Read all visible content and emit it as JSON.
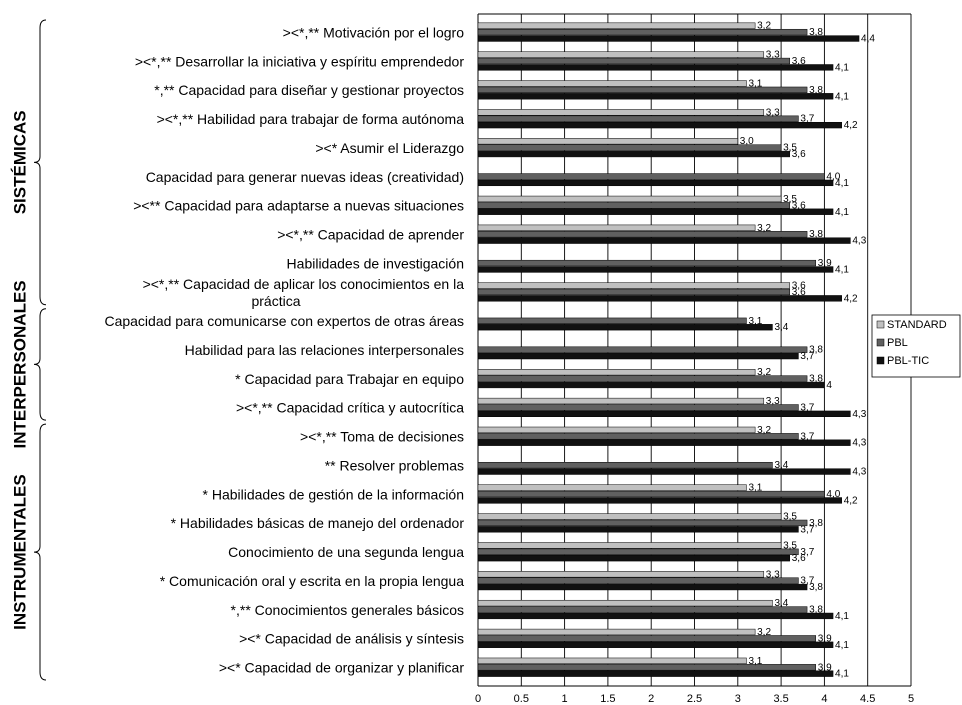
{
  "chart_data": {
    "type": "bar",
    "orientation": "horizontal",
    "xlim": [
      0,
      5
    ],
    "x_ticks": [
      "0",
      "0.5",
      "1",
      "1.5",
      "2",
      "2.5",
      "3",
      "3.5",
      "4",
      "4.5",
      "5"
    ],
    "grid": "vertical",
    "legend_position": "right",
    "groups": [
      {
        "name": "SISTÉMICAS",
        "first": 0,
        "last": 9
      },
      {
        "name": "INTERPERSONALES",
        "first": 10,
        "last": 13
      },
      {
        "name": "INSTRUMENTALES",
        "first": 14,
        "last": 22
      }
    ],
    "categories": [
      [
        "><*,** Motivación por el logro"
      ],
      [
        "><*,** Desarrollar la iniciativa y espíritu emprendedor"
      ],
      [
        "*,** Capacidad para diseñar y gestionar proyectos"
      ],
      [
        "><*,** Habilidad para trabajar de forma autónoma"
      ],
      [
        "><* Asumir el Liderazgo"
      ],
      [
        "Capacidad para generar nuevas ideas (creatividad)"
      ],
      [
        "><** Capacidad para adaptarse a nuevas situaciones"
      ],
      [
        "><*,** Capacidad de aprender"
      ],
      [
        "Habilidades de investigación"
      ],
      [
        "><*,** Capacidad de aplicar los conocimientos en la",
        "práctica"
      ],
      [
        "Capacidad para comunicarse con expertos de otras áreas"
      ],
      [
        "Habilidad para las relaciones interpersonales"
      ],
      [
        "* Capacidad para Trabajar en equipo"
      ],
      [
        "><*,** Capacidad crítica y autocrítica"
      ],
      [
        "><*,** Toma de decisiones"
      ],
      [
        "** Resolver problemas"
      ],
      [
        "* Habilidades de gestión de la información"
      ],
      [
        "* Habilidades básicas de manejo del ordenador"
      ],
      [
        "Conocimiento de una segunda lengua"
      ],
      [
        "* Comunicación oral y escrita en la propia lengua"
      ],
      [
        "*,** Conocimientos generales básicos"
      ],
      [
        "><* Capacidad de análisis y síntesis"
      ],
      [
        "><* Capacidad de organizar y planificar"
      ]
    ],
    "series": [
      {
        "name": "STANDARD",
        "color": "#c0c0c0",
        "values": [
          3.2,
          3.3,
          3.1,
          3.3,
          3.0,
          null,
          3.5,
          3.2,
          null,
          3.6,
          null,
          null,
          3.2,
          3.3,
          3.2,
          null,
          3.1,
          3.5,
          3.5,
          3.3,
          3.4,
          3.2,
          3.1
        ],
        "labels": [
          "3,2",
          "3,3",
          "3,1",
          "3,3",
          "3,0",
          "",
          "3,5",
          "3,2",
          "",
          "3,6",
          "",
          "",
          "3,2",
          "3,3",
          "3,2",
          "",
          "3,1",
          "3,5",
          "3,5",
          "3,3",
          "3,4",
          "3,2",
          "3,1"
        ]
      },
      {
        "name": "PBL",
        "color": "#606060",
        "values": [
          3.8,
          3.6,
          3.8,
          3.7,
          3.5,
          4.0,
          3.6,
          3.8,
          3.9,
          3.6,
          3.1,
          3.8,
          3.8,
          3.7,
          3.7,
          3.4,
          4.0,
          3.8,
          3.7,
          3.7,
          3.8,
          3.9,
          3.9
        ],
        "labels": [
          "3,8",
          "3,6",
          "3,8",
          "3,7",
          "3,5",
          "4,0",
          "3,6",
          "3,8",
          "3,9",
          "3,6",
          "3,1",
          "3,8",
          "3,8",
          "3,7",
          "3,7",
          "3,4",
          "4,0",
          "3,8",
          "3,7",
          "3,7",
          "3,8",
          "3,9",
          "3,9"
        ]
      },
      {
        "name": "PBL-TIC",
        "color": "#111111",
        "values": [
          4.4,
          4.1,
          4.1,
          4.2,
          3.6,
          4.1,
          4.1,
          4.3,
          4.1,
          4.2,
          3.4,
          3.7,
          4.0,
          4.3,
          4.3,
          4.3,
          4.2,
          3.7,
          3.6,
          3.8,
          4.1,
          4.1,
          4.1
        ],
        "labels": [
          "4,4",
          "4,1",
          "4,1",
          "4,2",
          "3,6",
          "4,1",
          "4,1",
          "4,3",
          "4,1",
          "4,2",
          "3,4",
          "3,7",
          "4",
          "4,3",
          "4,3",
          "4,3",
          "4,2",
          "3,7",
          "3,6",
          "3,8",
          "4,1",
          "4,1",
          "4,1"
        ]
      }
    ]
  }
}
